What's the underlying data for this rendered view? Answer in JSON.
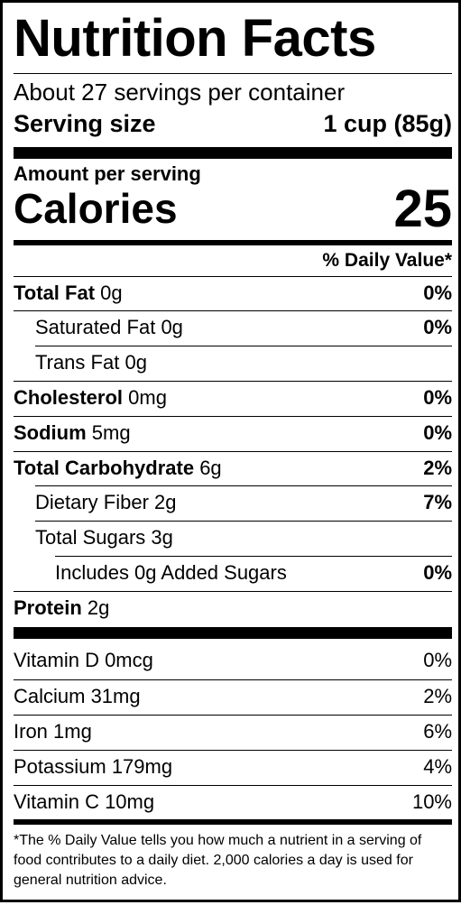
{
  "title": "Nutrition Facts",
  "servings_per_container": "About 27 servings per container",
  "serving_size": {
    "label": "Serving size",
    "value": "1 cup (85g)"
  },
  "amount_per_serving": "Amount per serving",
  "calories": {
    "label": "Calories",
    "value": "25"
  },
  "daily_value_header": "% Daily Value*",
  "nutrients": [
    {
      "name": "Total Fat",
      "amount": "0g",
      "dv": "0%"
    },
    {
      "name": "Saturated Fat",
      "amount": "0g",
      "dv": "0%"
    },
    {
      "name": "Trans Fat",
      "amount": "0g",
      "dv": ""
    },
    {
      "name": "Cholesterol",
      "amount": "0mg",
      "dv": "0%"
    },
    {
      "name": "Sodium",
      "amount": "5mg",
      "dv": "0%"
    },
    {
      "name": "Total Carbohydrate",
      "amount": "6g",
      "dv": "2%"
    },
    {
      "name": "Dietary Fiber",
      "amount": "2g",
      "dv": "7%"
    },
    {
      "name": "Total Sugars",
      "amount": "3g",
      "dv": ""
    },
    {
      "name": "Includes 0g Added Sugars",
      "amount": "",
      "dv": "0%"
    },
    {
      "name": "Protein",
      "amount": "2g",
      "dv": ""
    }
  ],
  "vitamins": [
    {
      "name": "Vitamin D 0mcg",
      "dv": "0%"
    },
    {
      "name": "Calcium 31mg",
      "dv": "2%"
    },
    {
      "name": "Iron 1mg",
      "dv": "6%"
    },
    {
      "name": "Potassium 179mg",
      "dv": "4%"
    },
    {
      "name": "Vitamin C 10mg",
      "dv": "10%"
    }
  ],
  "footnote": "*The % Daily Value tells you how much a nutrient in a serving of food contributes to a daily diet. 2,000 calories a day is used for general nutrition advice."
}
